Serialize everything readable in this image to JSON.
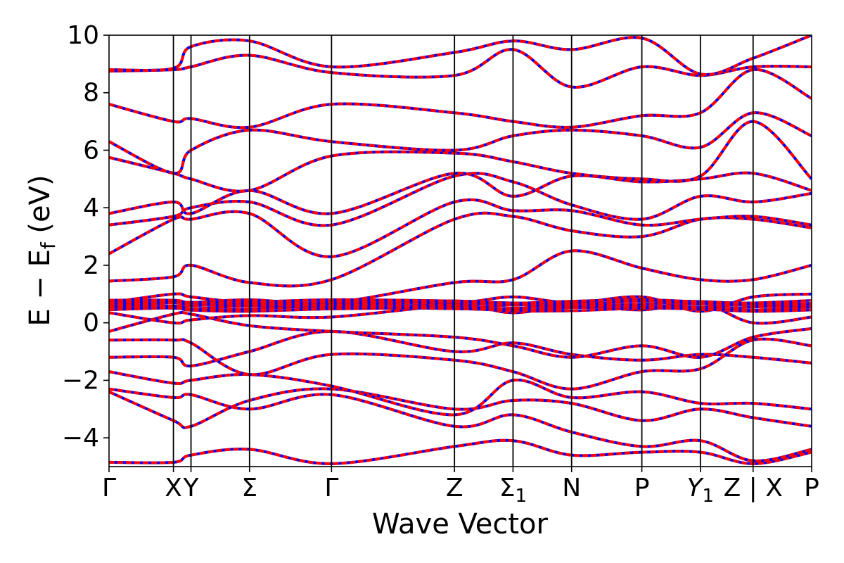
{
  "chart_data": {
    "type": "line",
    "title": "",
    "xlabel": "Wave Vector",
    "ylabel": "E − E_f (eV)",
    "ylabel_parts": {
      "prefix": "E − E",
      "subscript": "f",
      "suffix": " (eV)"
    },
    "ylim": [
      -5,
      10
    ],
    "yticks": [
      -4,
      -2,
      0,
      2,
      4,
      6,
      8,
      10
    ],
    "ytick_labels": [
      "−4",
      "−2",
      "0",
      "2",
      "4",
      "6",
      "8",
      "10"
    ],
    "xlim": [
      0,
      11.0
    ],
    "high_symmetry_points": [
      {
        "label": "Γ",
        "x": 0.0
      },
      {
        "label": "X",
        "x": 1.1
      },
      {
        "label": "Y",
        "x": 1.4
      },
      {
        "label": "Σ",
        "x": 2.4
      },
      {
        "label": "Γ",
        "x": 3.8
      },
      {
        "label": "Z",
        "x": 5.9
      },
      {
        "label": "Σ",
        "sub": "1",
        "x": 6.9
      },
      {
        "label": "N",
        "x": 7.9
      },
      {
        "label": "P",
        "x": 9.1
      },
      {
        "label": "Y",
        "sub": "1",
        "italic": true,
        "x": 10.1
      },
      {
        "label": "Z | X",
        "x": 11.0
      },
      {
        "label": "P",
        "x": 12.0
      }
    ],
    "xrange_full": [
      0,
      12.0
    ],
    "vertical_lines_at": [
      1.1,
      1.4,
      2.4,
      3.8,
      5.9,
      6.9,
      7.9,
      9.1,
      10.1,
      11.0
    ],
    "grid": false,
    "series_styles": [
      {
        "role": "solid",
        "color": "#0000ff"
      },
      {
        "role": "dashed",
        "color": "#ff0000"
      }
    ],
    "bands": [
      [
        -4.85,
        -4.85,
        -4.6,
        -4.4,
        -4.9,
        -4.3,
        -4.1,
        -4.6,
        -4.5,
        -4.5,
        -4.9,
        -4.5
      ],
      [
        -2.3,
        -2.6,
        -2.5,
        -3.0,
        -2.5,
        -3.6,
        -3.2,
        -3.8,
        -4.3,
        -4.1,
        -4.8,
        -4.4
      ],
      [
        -2.4,
        -3.4,
        -3.6,
        -2.7,
        -2.3,
        -3.0,
        -2.7,
        -2.8,
        -3.4,
        -3.0,
        -3.3,
        -3.6
      ],
      [
        -1.7,
        -2.1,
        -2.0,
        -1.8,
        -2.2,
        -3.2,
        -2.0,
        -2.6,
        -2.4,
        -2.8,
        -2.8,
        -3.0
      ],
      [
        -1.2,
        -1.2,
        -1.5,
        -1.0,
        -0.3,
        -1.0,
        -0.7,
        -1.1,
        -1.3,
        -1.1,
        -1.2,
        -1.4
      ],
      [
        -0.6,
        -0.6,
        -0.7,
        -1.8,
        -1.1,
        -1.3,
        -1.7,
        -2.3,
        -1.7,
        -1.6,
        -0.6,
        -0.8
      ],
      [
        -0.3,
        0.3,
        0.3,
        -0.1,
        -0.3,
        -0.5,
        -0.8,
        -1.2,
        -0.8,
        -1.2,
        -0.5,
        -0.2
      ],
      [
        0.35,
        0.0,
        0.1,
        0.25,
        0.2,
        0.6,
        0.35,
        0.6,
        0.45,
        0.7,
        0.0,
        0.2
      ],
      [
        0.7,
        1.0,
        0.9,
        0.7,
        0.7,
        0.7,
        0.9,
        0.7,
        0.9,
        0.4,
        0.9,
        1.0
      ],
      [
        0.7,
        0.7,
        0.7,
        0.8,
        0.7,
        1.4,
        1.5,
        2.5,
        1.9,
        1.5,
        1.5,
        2.0
      ],
      [
        1.45,
        1.6,
        2.0,
        1.4,
        1.5,
        3.6,
        3.7,
        3.2,
        3.0,
        3.6,
        3.6,
        3.3
      ],
      [
        2.4,
        3.6,
        3.6,
        3.8,
        2.3,
        4.2,
        3.9,
        3.9,
        3.4,
        3.6,
        3.7,
        3.4
      ],
      [
        3.4,
        3.7,
        4.0,
        4.2,
        3.4,
        5.1,
        4.9,
        4.1,
        3.6,
        4.4,
        4.2,
        4.5
      ],
      [
        3.8,
        4.2,
        3.8,
        4.6,
        3.8,
        5.2,
        4.4,
        5.1,
        4.9,
        5.0,
        5.2,
        4.6
      ],
      [
        5.75,
        5.2,
        5.0,
        4.6,
        5.8,
        5.9,
        5.6,
        5.2,
        5.0,
        5.1,
        7.0,
        5.0
      ],
      [
        6.3,
        5.2,
        6.0,
        6.7,
        6.3,
        6.0,
        6.5,
        6.7,
        6.5,
        6.1,
        7.3,
        6.5
      ],
      [
        7.6,
        7.0,
        7.1,
        6.8,
        7.6,
        7.3,
        7.0,
        6.8,
        7.2,
        7.3,
        8.8,
        7.8
      ],
      [
        8.75,
        8.8,
        8.9,
        9.3,
        8.7,
        8.6,
        9.5,
        8.2,
        8.9,
        8.6,
        8.9,
        8.9
      ],
      [
        8.8,
        8.85,
        9.6,
        9.8,
        8.9,
        9.4,
        9.8,
        9.5,
        9.9,
        8.65,
        9.2,
        10.0
      ]
    ],
    "flat_band_cluster": {
      "center": 0.6,
      "spread": 0.3
    }
  }
}
